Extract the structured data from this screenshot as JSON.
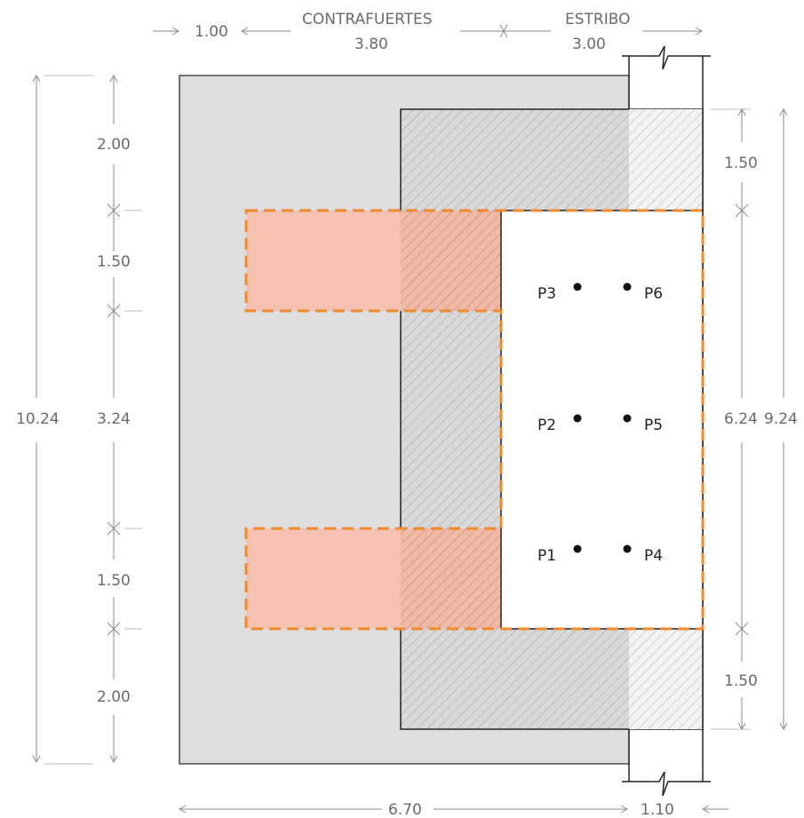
{
  "colors": {
    "outer_fill": "#dedede",
    "hatch_fill": "#d6d6d6",
    "accent_orange": "#f08a2a",
    "orange_fill": "#f5c2b2",
    "line_dark": "#222222",
    "dim_line": "#8a8a8a"
  },
  "top_dims": {
    "left": "1.00",
    "contrafuertes_label": "CONTRAFUERTES",
    "contrafuertes_value": "3.80",
    "estribo_label": "ESTRIBO",
    "estribo_value": "3.00"
  },
  "bottom_dims": {
    "width": "6.70",
    "right": "1.10"
  },
  "left_dims": {
    "total": "10.24",
    "segments": [
      "2.00",
      "1.50",
      "3.24",
      "1.50",
      "2.00"
    ]
  },
  "right_dims": {
    "inner": "6.24",
    "outer": "9.24",
    "top": "1.50",
    "bottom": "1.50"
  },
  "points": [
    {
      "label": "P3"
    },
    {
      "label": "P6"
    },
    {
      "label": "P2"
    },
    {
      "label": "P5"
    },
    {
      "label": "P1"
    },
    {
      "label": "P4"
    }
  ]
}
